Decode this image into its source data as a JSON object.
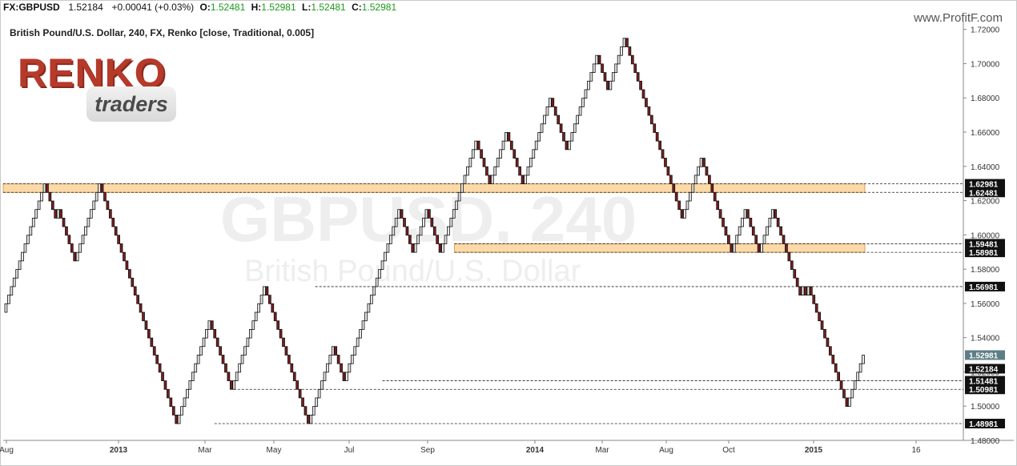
{
  "header": {
    "symbol": "FX:GBPUSD",
    "last": "1.52184",
    "change": "+0.00041 (+0.03%)",
    "o_label": "O:",
    "o_value": "1.52481",
    "h_label": "H:",
    "h_value": "1.52981",
    "l_label": "L:",
    "l_value": "1.52481",
    "c_label": "C:",
    "c_value": "1.52981",
    "brand": "www.ProfitF.com"
  },
  "logo": {
    "word1": "RENKO",
    "word2": "traders"
  },
  "watermark": {
    "line1": "GBPUSD, 240",
    "line2": "British Pound/U.S. Dollar"
  },
  "colors": {
    "brick_up": "#e8e8e8",
    "brick_down": "#7a1e1e",
    "brick_outline": "#111111",
    "zone": "#fcd9a8",
    "zone_border": "#e0a050",
    "last_price_tag": "#5d7d86"
  },
  "chart_data": {
    "type": "renko",
    "title": "British Pound/U.S. Dollar, 240, FX, Renko [close, Traditional, 0.005]",
    "brick_size": 0.005,
    "ylim": [
      1.48,
      1.725
    ],
    "y_ticks": [
      "1.72000",
      "1.70000",
      "1.68000",
      "1.66000",
      "1.64000",
      "1.62000",
      "1.60000",
      "1.58000",
      "1.56000",
      "1.54000",
      "1.52000",
      "1.50000",
      "1.48000"
    ],
    "x_ticks": [
      {
        "label": "Aug",
        "bold": false
      },
      {
        "label": "2013",
        "bold": true
      },
      {
        "label": "Mar",
        "bold": false
      },
      {
        "label": "May",
        "bold": false
      },
      {
        "label": "Jul",
        "bold": false
      },
      {
        "label": "Sep",
        "bold": false
      },
      {
        "label": "2014",
        "bold": true
      },
      {
        "label": "Mar",
        "bold": false
      },
      {
        "label": "Aug",
        "bold": false
      },
      {
        "label": "Oct",
        "bold": false
      },
      {
        "label": "2015",
        "bold": true
      },
      {
        "label": "16",
        "bold": false
      }
    ],
    "pivots": [
      1.5548,
      1.6298,
      1.6098,
      1.6148,
      1.5848,
      1.6298,
      1.5698,
      1.4898,
      1.5498,
      1.5098,
      1.5698,
      1.4898,
      1.5348,
      1.5148,
      1.6148,
      1.5898,
      1.6148,
      1.5898,
      1.6548,
      1.6298,
      1.6598,
      1.6298,
      1.6798,
      1.6498,
      1.7048,
      1.6848,
      1.7148,
      1.6098,
      1.6448,
      1.5898,
      1.6148,
      1.5898,
      1.6148,
      1.5648,
      1.5698,
      1.5648,
      1.5698,
      1.4998,
      1.5298
    ],
    "zones": [
      {
        "from": 1.62481,
        "to": 1.62981,
        "start": 0.0
      },
      {
        "from": 1.58981,
        "to": 1.59481,
        "start": 0.47
      }
    ],
    "levels": [
      {
        "value": 1.62981,
        "label": "1.62981",
        "start": 0.0,
        "line": true
      },
      {
        "value": 1.62481,
        "label": "1.62481",
        "start": 0.0,
        "line": true
      },
      {
        "value": 1.59481,
        "label": "1.59481",
        "start": 0.47,
        "line": true
      },
      {
        "value": 1.58981,
        "label": "1.58981",
        "start": 0.47,
        "line": true
      },
      {
        "value": 1.56981,
        "label": "1.56981",
        "start": 0.325,
        "line": true
      },
      {
        "value": 1.52184,
        "label": "1.52184",
        "start": 0.99,
        "line": false
      },
      {
        "value": 1.51481,
        "label": "1.51481",
        "start": 0.395,
        "line": true
      },
      {
        "value": 1.50981,
        "label": "1.50981",
        "start": 0.24,
        "line": true
      },
      {
        "value": 1.48981,
        "label": "1.48981",
        "start": 0.22,
        "line": true
      }
    ],
    "last_price": {
      "value": 1.52981,
      "label": "1.52981"
    }
  }
}
